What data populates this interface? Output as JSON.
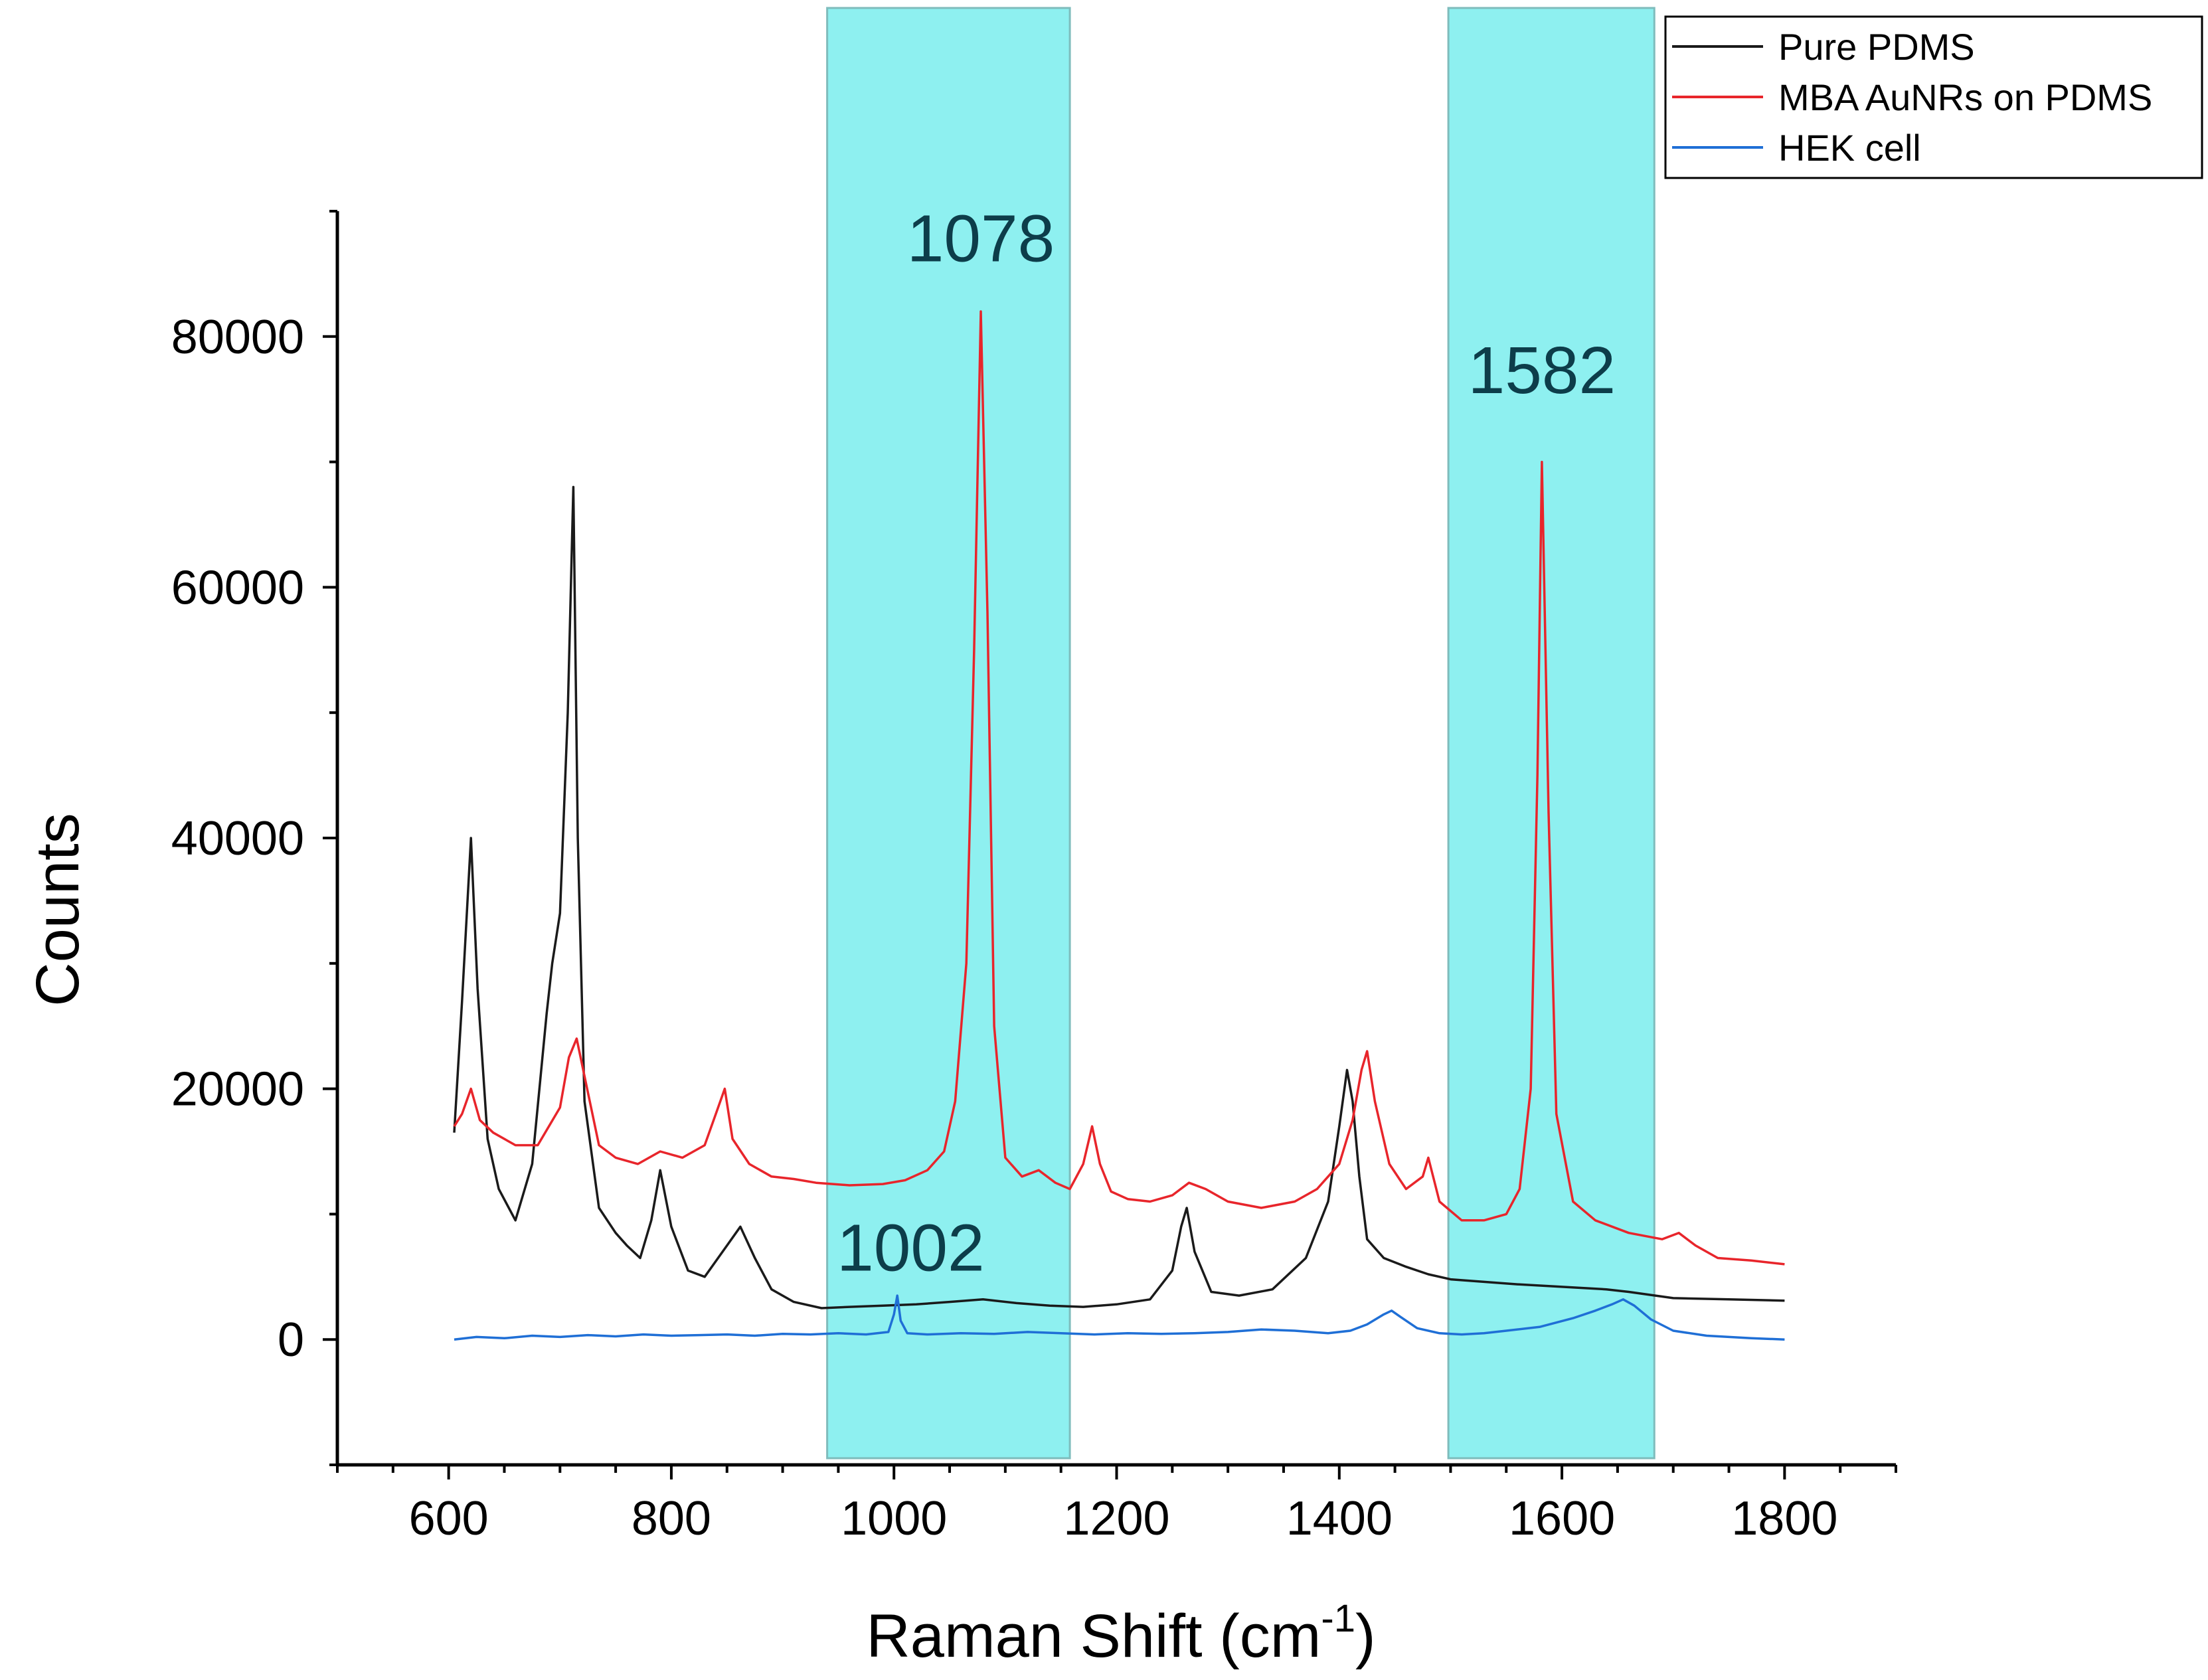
{
  "chart_data": {
    "type": "line",
    "title": "",
    "xlabel": "Raman Shift (cm",
    "xlabel_sup": "-1",
    "xlabel_close": ")",
    "ylabel": "Counts",
    "xlim": [
      500,
      1900
    ],
    "ylim": [
      -10000,
      90000
    ],
    "x_ticks": [
      600,
      800,
      1000,
      1200,
      1400,
      1600,
      1800
    ],
    "x_tick_labels": [
      "600",
      "800",
      "1000",
      "1200",
      "1400",
      "1600",
      "1800"
    ],
    "y_ticks": [
      0,
      20000,
      40000,
      60000,
      80000
    ],
    "y_tick_labels": [
      "0",
      "20000",
      "40000",
      "60000",
      "80000"
    ],
    "highlight_bands": [
      {
        "x_from": 940,
        "x_to": 1158,
        "color": "#8ef0f0"
      },
      {
        "x_from": 1498,
        "x_to": 1683,
        "color": "#8ef0f0"
      }
    ],
    "annotations": [
      {
        "text": "1078",
        "x": 1078,
        "y": 86000
      },
      {
        "text": "1582",
        "x": 1582,
        "y": 75500
      },
      {
        "text": "1002",
        "x": 1015,
        "y": 5500
      }
    ],
    "series": [
      {
        "name": "Pure PDMS",
        "color": "#1a1a1a",
        "x": [
          605,
          612,
          620,
          626,
          635,
          645,
          660,
          675,
          688,
          693,
          700,
          707,
          712,
          716,
          722,
          735,
          750,
          760,
          772,
          782,
          790,
          800,
          815,
          830,
          850,
          862,
          875,
          890,
          910,
          935,
          960,
          990,
          1020,
          1050,
          1080,
          1110,
          1140,
          1170,
          1200,
          1230,
          1250,
          1258,
          1263,
          1270,
          1285,
          1310,
          1340,
          1370,
          1390,
          1400,
          1407,
          1412,
          1418,
          1425,
          1440,
          1460,
          1480,
          1500,
          1530,
          1560,
          1600,
          1640,
          1660,
          1700,
          1750,
          1800
        ],
        "y": [
          16500,
          27000,
          40000,
          28000,
          16000,
          12000,
          9500,
          14000,
          26000,
          30000,
          34000,
          50000,
          68000,
          40000,
          19000,
          10500,
          8500,
          7500,
          6500,
          9500,
          13500,
          9000,
          5500,
          5000,
          7500,
          9000,
          6500,
          4000,
          3000,
          2500,
          2600,
          2700,
          2800,
          3000,
          3200,
          2900,
          2700,
          2600,
          2800,
          3200,
          5500,
          9000,
          10500,
          7000,
          3800,
          3500,
          4000,
          6500,
          11000,
          17000,
          21500,
          19000,
          13000,
          8000,
          6500,
          5800,
          5200,
          4800,
          4600,
          4400,
          4200,
          4000,
          3800,
          3300,
          3200,
          3100
        ]
      },
      {
        "name": "MBA AuNRs on PDMS",
        "color": "#e8252b",
        "x": [
          605,
          612,
          620,
          628,
          640,
          660,
          680,
          700,
          708,
          715,
          722,
          735,
          750,
          770,
          790,
          810,
          830,
          840,
          848,
          855,
          870,
          890,
          910,
          930,
          960,
          990,
          1010,
          1030,
          1045,
          1055,
          1065,
          1072,
          1078,
          1084,
          1090,
          1100,
          1115,
          1130,
          1145,
          1158,
          1170,
          1178,
          1185,
          1195,
          1210,
          1230,
          1250,
          1265,
          1280,
          1300,
          1330,
          1360,
          1380,
          1400,
          1412,
          1420,
          1425,
          1432,
          1445,
          1460,
          1475,
          1480,
          1490,
          1510,
          1530,
          1550,
          1562,
          1572,
          1578,
          1582,
          1588,
          1595,
          1610,
          1630,
          1660,
          1690,
          1705,
          1720,
          1740,
          1770,
          1800
        ],
        "y": [
          17000,
          18000,
          20000,
          17500,
          16500,
          15500,
          15500,
          18500,
          22500,
          24000,
          21000,
          15500,
          14500,
          14000,
          15000,
          14500,
          15500,
          18000,
          20000,
          16000,
          14000,
          13000,
          12800,
          12500,
          12300,
          12400,
          12700,
          13500,
          15000,
          19000,
          30000,
          55000,
          82000,
          58000,
          25000,
          14500,
          13000,
          13500,
          12500,
          12000,
          14000,
          17000,
          14000,
          11800,
          11200,
          11000,
          11500,
          12500,
          12000,
          11000,
          10500,
          11000,
          12000,
          14000,
          17500,
          21500,
          23000,
          19000,
          14000,
          12000,
          13000,
          14500,
          11000,
          9500,
          9500,
          10000,
          12000,
          20000,
          45000,
          70000,
          42000,
          18000,
          11000,
          9500,
          8500,
          8000,
          8500,
          7500,
          6500,
          6300,
          6000
        ]
      },
      {
        "name": "HEK cell",
        "color": "#1f6fd6",
        "x": [
          605,
          625,
          650,
          675,
          700,
          725,
          750,
          775,
          800,
          825,
          850,
          875,
          900,
          925,
          950,
          975,
          995,
          1000,
          1003,
          1006,
          1012,
          1030,
          1060,
          1090,
          1120,
          1150,
          1180,
          1210,
          1240,
          1270,
          1300,
          1330,
          1360,
          1390,
          1410,
          1425,
          1440,
          1447,
          1455,
          1470,
          1490,
          1510,
          1530,
          1550,
          1580,
          1610,
          1630,
          1645,
          1655,
          1665,
          1680,
          1700,
          1730,
          1770,
          1800
        ],
        "y": [
          0,
          200,
          100,
          300,
          200,
          350,
          250,
          400,
          300,
          350,
          400,
          300,
          450,
          400,
          500,
          400,
          600,
          2000,
          3500,
          1500,
          500,
          400,
          500,
          450,
          600,
          500,
          400,
          500,
          450,
          500,
          600,
          800,
          700,
          500,
          700,
          1200,
          2000,
          2300,
          1800,
          900,
          500,
          400,
          500,
          700,
          1000,
          1700,
          2300,
          2800,
          3200,
          2700,
          1600,
          700,
          300,
          100,
          0
        ]
      }
    ],
    "legend": {
      "placement": "top-right",
      "entries": [
        "Pure PDMS",
        "MBA AuNRs on PDMS",
        "HEK cell"
      ]
    }
  }
}
